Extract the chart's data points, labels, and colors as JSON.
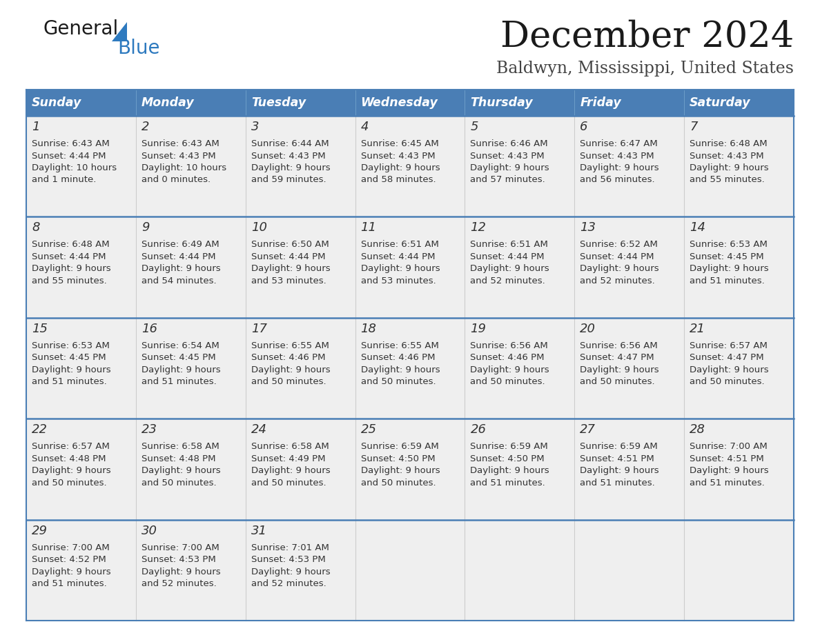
{
  "title": "December 2024",
  "subtitle": "Baldwyn, Mississippi, United States",
  "header_color": "#4a7eb5",
  "header_text_color": "#ffffff",
  "cell_bg_color": "#efefef",
  "border_color": "#4a7eb5",
  "text_color": "#333333",
  "day_num_color": "#333333",
  "days_of_week": [
    "Sunday",
    "Monday",
    "Tuesday",
    "Wednesday",
    "Thursday",
    "Friday",
    "Saturday"
  ],
  "weeks": [
    [
      {
        "day": "1",
        "sunrise": "6:43 AM",
        "sunset": "4:44 PM",
        "daylight_h": "10 hours",
        "daylight_m": "and 1 minute."
      },
      {
        "day": "2",
        "sunrise": "6:43 AM",
        "sunset": "4:43 PM",
        "daylight_h": "10 hours",
        "daylight_m": "and 0 minutes."
      },
      {
        "day": "3",
        "sunrise": "6:44 AM",
        "sunset": "4:43 PM",
        "daylight_h": "9 hours",
        "daylight_m": "and 59 minutes."
      },
      {
        "day": "4",
        "sunrise": "6:45 AM",
        "sunset": "4:43 PM",
        "daylight_h": "9 hours",
        "daylight_m": "and 58 minutes."
      },
      {
        "day": "5",
        "sunrise": "6:46 AM",
        "sunset": "4:43 PM",
        "daylight_h": "9 hours",
        "daylight_m": "and 57 minutes."
      },
      {
        "day": "6",
        "sunrise": "6:47 AM",
        "sunset": "4:43 PM",
        "daylight_h": "9 hours",
        "daylight_m": "and 56 minutes."
      },
      {
        "day": "7",
        "sunrise": "6:48 AM",
        "sunset": "4:43 PM",
        "daylight_h": "9 hours",
        "daylight_m": "and 55 minutes."
      }
    ],
    [
      {
        "day": "8",
        "sunrise": "6:48 AM",
        "sunset": "4:44 PM",
        "daylight_h": "9 hours",
        "daylight_m": "and 55 minutes."
      },
      {
        "day": "9",
        "sunrise": "6:49 AM",
        "sunset": "4:44 PM",
        "daylight_h": "9 hours",
        "daylight_m": "and 54 minutes."
      },
      {
        "day": "10",
        "sunrise": "6:50 AM",
        "sunset": "4:44 PM",
        "daylight_h": "9 hours",
        "daylight_m": "and 53 minutes."
      },
      {
        "day": "11",
        "sunrise": "6:51 AM",
        "sunset": "4:44 PM",
        "daylight_h": "9 hours",
        "daylight_m": "and 53 minutes."
      },
      {
        "day": "12",
        "sunrise": "6:51 AM",
        "sunset": "4:44 PM",
        "daylight_h": "9 hours",
        "daylight_m": "and 52 minutes."
      },
      {
        "day": "13",
        "sunrise": "6:52 AM",
        "sunset": "4:44 PM",
        "daylight_h": "9 hours",
        "daylight_m": "and 52 minutes."
      },
      {
        "day": "14",
        "sunrise": "6:53 AM",
        "sunset": "4:45 PM",
        "daylight_h": "9 hours",
        "daylight_m": "and 51 minutes."
      }
    ],
    [
      {
        "day": "15",
        "sunrise": "6:53 AM",
        "sunset": "4:45 PM",
        "daylight_h": "9 hours",
        "daylight_m": "and 51 minutes."
      },
      {
        "day": "16",
        "sunrise": "6:54 AM",
        "sunset": "4:45 PM",
        "daylight_h": "9 hours",
        "daylight_m": "and 51 minutes."
      },
      {
        "day": "17",
        "sunrise": "6:55 AM",
        "sunset": "4:46 PM",
        "daylight_h": "9 hours",
        "daylight_m": "and 50 minutes."
      },
      {
        "day": "18",
        "sunrise": "6:55 AM",
        "sunset": "4:46 PM",
        "daylight_h": "9 hours",
        "daylight_m": "and 50 minutes."
      },
      {
        "day": "19",
        "sunrise": "6:56 AM",
        "sunset": "4:46 PM",
        "daylight_h": "9 hours",
        "daylight_m": "and 50 minutes."
      },
      {
        "day": "20",
        "sunrise": "6:56 AM",
        "sunset": "4:47 PM",
        "daylight_h": "9 hours",
        "daylight_m": "and 50 minutes."
      },
      {
        "day": "21",
        "sunrise": "6:57 AM",
        "sunset": "4:47 PM",
        "daylight_h": "9 hours",
        "daylight_m": "and 50 minutes."
      }
    ],
    [
      {
        "day": "22",
        "sunrise": "6:57 AM",
        "sunset": "4:48 PM",
        "daylight_h": "9 hours",
        "daylight_m": "and 50 minutes."
      },
      {
        "day": "23",
        "sunrise": "6:58 AM",
        "sunset": "4:48 PM",
        "daylight_h": "9 hours",
        "daylight_m": "and 50 minutes."
      },
      {
        "day": "24",
        "sunrise": "6:58 AM",
        "sunset": "4:49 PM",
        "daylight_h": "9 hours",
        "daylight_m": "and 50 minutes."
      },
      {
        "day": "25",
        "sunrise": "6:59 AM",
        "sunset": "4:50 PM",
        "daylight_h": "9 hours",
        "daylight_m": "and 50 minutes."
      },
      {
        "day": "26",
        "sunrise": "6:59 AM",
        "sunset": "4:50 PM",
        "daylight_h": "9 hours",
        "daylight_m": "and 51 minutes."
      },
      {
        "day": "27",
        "sunrise": "6:59 AM",
        "sunset": "4:51 PM",
        "daylight_h": "9 hours",
        "daylight_m": "and 51 minutes."
      },
      {
        "day": "28",
        "sunrise": "7:00 AM",
        "sunset": "4:51 PM",
        "daylight_h": "9 hours",
        "daylight_m": "and 51 minutes."
      }
    ],
    [
      {
        "day": "29",
        "sunrise": "7:00 AM",
        "sunset": "4:52 PM",
        "daylight_h": "9 hours",
        "daylight_m": "and 51 minutes."
      },
      {
        "day": "30",
        "sunrise": "7:00 AM",
        "sunset": "4:53 PM",
        "daylight_h": "9 hours",
        "daylight_m": "and 52 minutes."
      },
      {
        "day": "31",
        "sunrise": "7:01 AM",
        "sunset": "4:53 PM",
        "daylight_h": "9 hours",
        "daylight_m": "and 52 minutes."
      },
      null,
      null,
      null,
      null
    ]
  ]
}
